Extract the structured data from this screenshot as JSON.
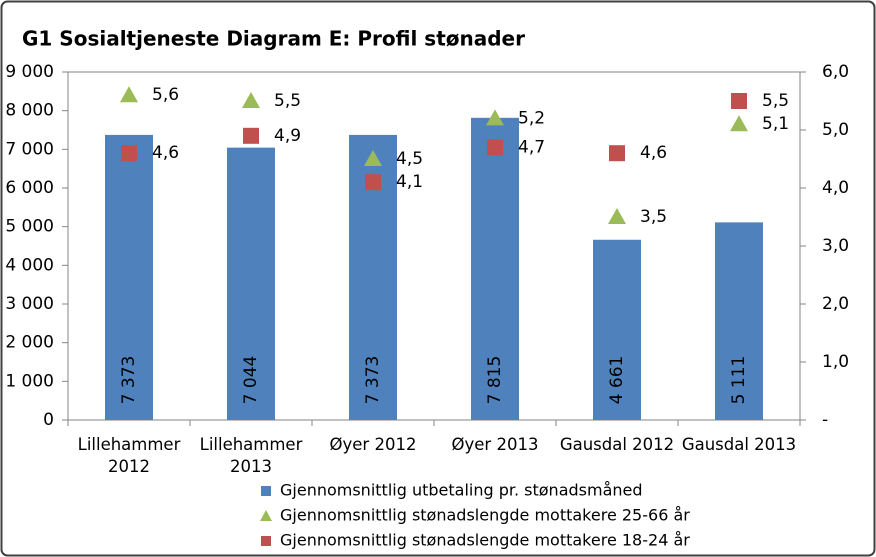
{
  "chart_data": {
    "type": "bar",
    "title": "G1 Sosialtjeneste Diagram E: Profil stønader",
    "categories": [
      "Lillehammer 2012",
      "Lillehammer 2013",
      "Øyer 2012",
      "Øyer 2013",
      "Gausdal 2012",
      "Gausdal 2013"
    ],
    "series": [
      {
        "name": "Gjennomsnittlig utbetaling pr. stønadsmåned",
        "color": "#4f81bd",
        "type": "bar",
        "values": [
          7373,
          7044,
          7373,
          7815,
          4661,
          5111
        ],
        "value_labels": [
          "7 373",
          "7 044",
          "7 373",
          "7 815",
          "4 661",
          "5 111"
        ]
      },
      {
        "name": "Gjennomsnittlig stønadslengde mottakere 25-66 år",
        "color": "#9bbb59",
        "type": "scatter",
        "marker": "triangle",
        "axis": "y2",
        "values": [
          5.6,
          5.5,
          4.5,
          5.2,
          3.5,
          5.1
        ],
        "value_labels": [
          "5,6",
          "5,5",
          "4,5",
          "5,2",
          "3,5",
          "5,1"
        ]
      },
      {
        "name": "Gjennomsnittlig stønadslengde mottakere 18-24 år",
        "color": "#c0504d",
        "type": "scatter",
        "marker": "square",
        "axis": "y2",
        "values": [
          4.6,
          4.9,
          4.1,
          4.7,
          4.6,
          5.5
        ],
        "value_labels": [
          "4,6",
          "4,9",
          "4,1",
          "4,7",
          "4,6",
          "5,5"
        ]
      }
    ],
    "ylim": [
      0,
      9000
    ],
    "yticks": [
      0,
      {
        "value": 1000,
        "label": "1 000"
      },
      {
        "value": 2000,
        "label": "2 000"
      },
      {
        "value": 3000,
        "label": "3 000"
      },
      {
        "value": 4000,
        "label": "4 000"
      },
      {
        "value": 5000,
        "label": "5 000"
      },
      {
        "value": 6000,
        "label": "6 000"
      },
      {
        "value": 7000,
        "label": "7 000"
      },
      {
        "value": 8000,
        "label": "8 000"
      },
      {
        "value": 9000,
        "label": "9 000"
      }
    ],
    "y2lim": [
      0,
      6
    ],
    "y2ticks": [
      {
        "value": 0,
        "label": "-"
      },
      {
        "value": 1,
        "label": "1,0"
      },
      {
        "value": 2,
        "label": "2,0"
      },
      {
        "value": 3,
        "label": "3,0"
      },
      {
        "value": 4,
        "label": "4,0"
      },
      {
        "value": 5,
        "label": "5,0"
      },
      {
        "value": 6,
        "label": "6,0"
      }
    ],
    "grid": false,
    "legend": "bottom"
  }
}
